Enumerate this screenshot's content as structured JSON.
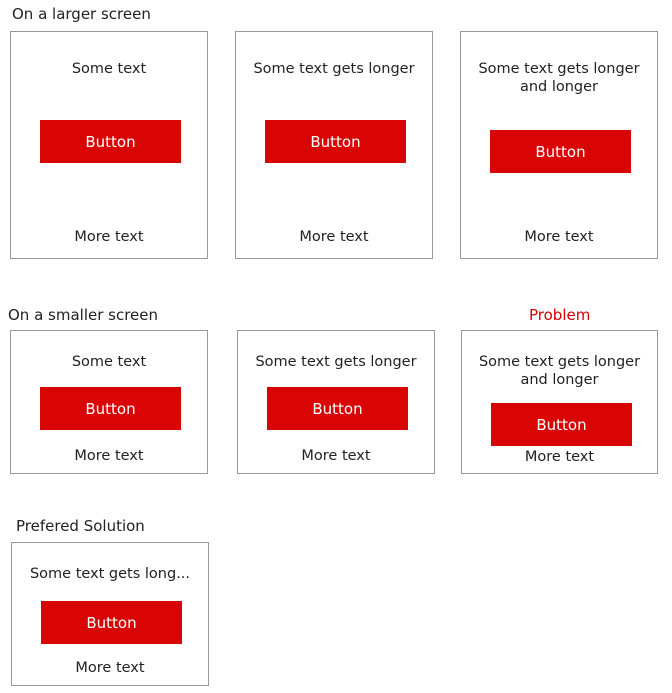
{
  "accent_color": "#d90505",
  "sections": {
    "larger": {
      "title": "On a larger screen"
    },
    "smaller": {
      "title": "On a smaller screen",
      "problem_label": "Problem"
    },
    "solution": {
      "title": "Prefered Solution"
    }
  },
  "boxes": [
    {
      "top_text": "Some text",
      "button": "Button",
      "bottom_text": "More text"
    },
    {
      "top_text": "Some text gets longer",
      "button": "Button",
      "bottom_text": "More text"
    },
    {
      "top_text": "Some text gets longer",
      "top_text_line2": "and longer",
      "button": "Button",
      "bottom_text": "More text"
    },
    {
      "top_text": "Some text",
      "button": "Button",
      "bottom_text": "More text"
    },
    {
      "top_text": "Some text gets longer",
      "button": "Button",
      "bottom_text": "More text"
    },
    {
      "top_text": "Some text gets longer",
      "top_text_line2": "and longer",
      "button": "Button",
      "bottom_text": "More text"
    },
    {
      "top_text": "Some text gets long...",
      "button": "Button",
      "bottom_text": "More text"
    }
  ]
}
